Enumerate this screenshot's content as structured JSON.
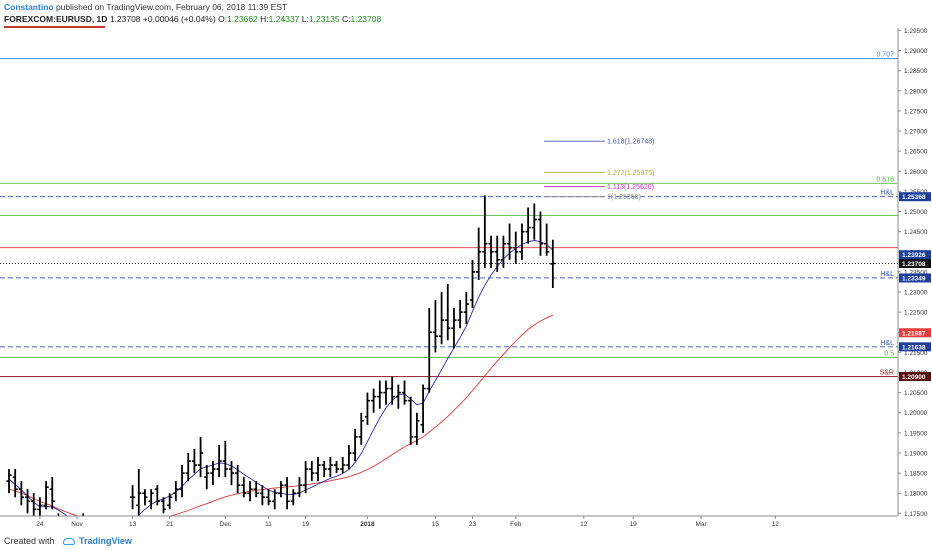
{
  "header": {
    "author": "Constantino",
    "published": "published on TradingView.com, February 06, 2018 11:39 EST",
    "symbol": "FOREXCOM:EURUSD, 1D",
    "last": "1.23708",
    "change": "+0.00046 (+0.04%)",
    "o_label": "O:",
    "o": "1.23662",
    "h_label": "H:",
    "h": "1.24337",
    "l_label": "L:",
    "l": "1.23135",
    "c_label": "C:",
    "c": "1.23708"
  },
  "footer": {
    "created": "Created with",
    "brand": "TradingView"
  },
  "colors": {
    "candle": "#000000",
    "ma_fast": "#2c2ca8",
    "ma_slow": "#e03a3a",
    "fib_blue": "#3b8fd9",
    "fib_green": "#5cbf4a",
    "support_red": "#e23c3c",
    "dashed_blue": "#3050b0",
    "brand": "#2a7fd4"
  },
  "chart_data": {
    "type": "ohlc",
    "ylim": [
      1.17434,
      1.2956
    ],
    "yticks": [
      "1.17500",
      "1.18000",
      "1.18500",
      "1.19000",
      "1.19500",
      "1.20000",
      "1.20500",
      "1.21000",
      "1.21500",
      "1.22000",
      "1.22500",
      "1.23000",
      "1.23500",
      "1.24000",
      "1.24500",
      "1.25000",
      "1.25500",
      "1.26000",
      "1.26500",
      "1.27000",
      "1.27500",
      "1.28000",
      "1.28500",
      "1.29000",
      "1.29500"
    ],
    "xticks": [
      {
        "label": "24",
        "i": 5
      },
      {
        "label": "Nov",
        "i": 11
      },
      {
        "label": "13",
        "i": 20
      },
      {
        "label": "21",
        "i": 26
      },
      {
        "label": "Dec",
        "i": 35
      },
      {
        "label": "11",
        "i": 42
      },
      {
        "label": "19",
        "i": 48
      },
      {
        "label": "2018",
        "i": 58
      },
      {
        "label": "15",
        "i": 69
      },
      {
        "label": "23",
        "i": 75
      },
      {
        "label": "Feb",
        "i": 82
      },
      {
        "label": "12",
        "i": 93
      },
      {
        "label": "19",
        "i": 101
      },
      {
        "label": "Mar",
        "i": 112
      },
      {
        "label": "12",
        "i": 124
      }
    ],
    "bars": [
      [
        1.183,
        1.186,
        1.18,
        1.1845
      ],
      [
        1.184,
        1.186,
        1.179,
        1.181
      ],
      [
        1.181,
        1.183,
        1.177,
        1.179
      ],
      [
        1.179,
        1.181,
        1.175,
        1.178
      ],
      [
        1.178,
        1.18,
        1.174,
        1.176
      ],
      [
        1.176,
        1.179,
        1.174,
        1.177
      ],
      [
        1.177,
        1.183,
        1.176,
        1.1815
      ],
      [
        1.181,
        1.184,
        1.176,
        1.178
      ],
      [
        1.172,
        1.175,
        1.17,
        1.173
      ],
      [
        1.172,
        1.174,
        1.169,
        1.171
      ],
      [
        1.171,
        1.173,
        1.169,
        1.172
      ],
      [
        1.172,
        1.174,
        1.17,
        1.173
      ],
      [
        1.173,
        1.175,
        1.171,
        1.172
      ],
      [
        1.172,
        1.174,
        1.17,
        1.171
      ],
      [
        1.17,
        1.172,
        1.169,
        1.171
      ],
      [
        1.171,
        1.173,
        1.169,
        1.17
      ],
      [
        1.17,
        1.172,
        1.168,
        1.17
      ],
      [
        1.17,
        1.172,
        1.169,
        1.171
      ],
      [
        1.171,
        1.173,
        1.17,
        1.172
      ],
      [
        1.172,
        1.174,
        1.17,
        1.173
      ],
      [
        1.179,
        1.182,
        1.176,
        1.179
      ],
      [
        1.177,
        1.186,
        1.174,
        1.18
      ],
      [
        1.18,
        1.181,
        1.177,
        1.179
      ],
      [
        1.178,
        1.181,
        1.176,
        1.18
      ],
      [
        1.181,
        1.182,
        1.177,
        1.178
      ],
      [
        1.178,
        1.179,
        1.175,
        1.176
      ],
      [
        1.177,
        1.18,
        1.176,
        1.179
      ],
      [
        1.18,
        1.183,
        1.178,
        1.181
      ],
      [
        1.181,
        1.187,
        1.179,
        1.185
      ],
      [
        1.185,
        1.19,
        1.183,
        1.188
      ],
      [
        1.188,
        1.191,
        1.185,
        1.187
      ],
      [
        1.187,
        1.194,
        1.184,
        1.19
      ],
      [
        1.184,
        1.187,
        1.181,
        1.185
      ],
      [
        1.185,
        1.188,
        1.182,
        1.186
      ],
      [
        1.186,
        1.192,
        1.184,
        1.188
      ],
      [
        1.188,
        1.193,
        1.184,
        1.186
      ],
      [
        1.186,
        1.188,
        1.182,
        1.185
      ],
      [
        1.185,
        1.187,
        1.18,
        1.182
      ],
      [
        1.182,
        1.184,
        1.179,
        1.18
      ],
      [
        1.18,
        1.183,
        1.178,
        1.181
      ],
      [
        1.181,
        1.183,
        1.179,
        1.18
      ],
      [
        1.18,
        1.182,
        1.177,
        1.179
      ],
      [
        1.179,
        1.181,
        1.177,
        1.178
      ],
      [
        1.178,
        1.181,
        1.176,
        1.18
      ],
      [
        1.18,
        1.183,
        1.179,
        1.182
      ],
      [
        1.182,
        1.184,
        1.176,
        1.178
      ],
      [
        1.178,
        1.181,
        1.177,
        1.18
      ],
      [
        1.18,
        1.184,
        1.179,
        1.182
      ],
      [
        1.182,
        1.188,
        1.18,
        1.186
      ],
      [
        1.186,
        1.188,
        1.183,
        1.185
      ],
      [
        1.185,
        1.189,
        1.183,
        1.187
      ],
      [
        1.187,
        1.188,
        1.184,
        1.186
      ],
      [
        1.186,
        1.189,
        1.184,
        1.187
      ],
      [
        1.187,
        1.188,
        1.185,
        1.186
      ],
      [
        1.186,
        1.189,
        1.185,
        1.187
      ],
      [
        1.187,
        1.192,
        1.186,
        1.19
      ],
      [
        1.19,
        1.196,
        1.188,
        1.194
      ],
      [
        1.194,
        1.2,
        1.192,
        1.198
      ],
      [
        1.199,
        1.205,
        1.197,
        1.203
      ],
      [
        1.203,
        1.206,
        1.2,
        1.204
      ],
      [
        1.204,
        1.208,
        1.201,
        1.205
      ],
      [
        1.205,
        1.208,
        1.202,
        1.206
      ],
      [
        1.206,
        1.209,
        1.202,
        1.204
      ],
      [
        1.204,
        1.207,
        1.201,
        1.205
      ],
      [
        1.205,
        1.208,
        1.202,
        1.203
      ],
      [
        1.203,
        1.204,
        1.192,
        1.194
      ],
      [
        1.194,
        1.2,
        1.192,
        1.198
      ],
      [
        1.197,
        1.207,
        1.195,
        1.206
      ],
      [
        1.206,
        1.226,
        1.205,
        1.22
      ],
      [
        1.22,
        1.228,
        1.215,
        1.219
      ],
      [
        1.219,
        1.23,
        1.217,
        1.223
      ],
      [
        1.223,
        1.232,
        1.218,
        1.221
      ],
      [
        1.221,
        1.226,
        1.216,
        1.223
      ],
      [
        1.223,
        1.228,
        1.221,
        1.225
      ],
      [
        1.225,
        1.23,
        1.222,
        1.227
      ],
      [
        1.228,
        1.238,
        1.226,
        1.235
      ],
      [
        1.235,
        1.246,
        1.233,
        1.24
      ],
      [
        1.24,
        1.254,
        1.236,
        1.242
      ],
      [
        1.242,
        1.244,
        1.236,
        1.24
      ],
      [
        1.24,
        1.244,
        1.235,
        1.238
      ],
      [
        1.238,
        1.244,
        1.236,
        1.242
      ],
      [
        1.242,
        1.247,
        1.238,
        1.241
      ],
      [
        1.241,
        1.245,
        1.237,
        1.24
      ],
      [
        1.24,
        1.247,
        1.238,
        1.245
      ],
      [
        1.245,
        1.251,
        1.242,
        1.246
      ],
      [
        1.246,
        1.252,
        1.243,
        1.248
      ],
      [
        1.248,
        1.25,
        1.239,
        1.242
      ],
      [
        1.242,
        1.247,
        1.239,
        1.24
      ],
      [
        1.237,
        1.243,
        1.231,
        1.2371
      ]
    ],
    "ma_fast": [
      1.1835,
      1.1822,
      1.1808,
      1.1793,
      1.1778,
      1.1766,
      1.1767,
      1.1766,
      1.1758,
      1.1748,
      1.1738,
      1.173,
      1.1724,
      1.1718,
      1.1712,
      1.1707,
      1.1704,
      1.1704,
      1.1708,
      1.1716,
      1.173,
      1.1746,
      1.176,
      1.1772,
      1.1781,
      1.1786,
      1.1793,
      1.1803,
      1.1817,
      1.1833,
      1.1847,
      1.1861,
      1.1866,
      1.187,
      1.1875,
      1.1874,
      1.1868,
      1.1858,
      1.1847,
      1.1837,
      1.1827,
      1.1817,
      1.1808,
      1.1802,
      1.18,
      1.1797,
      1.1797,
      1.18,
      1.1808,
      1.1815,
      1.1823,
      1.183,
      1.1837,
      1.1842,
      1.1849,
      1.1859,
      1.1876,
      1.1899,
      1.1928,
      1.1958,
      1.1987,
      1.2012,
      1.2031,
      1.2044,
      1.2047,
      1.2034,
      1.202,
      1.2024,
      1.2053,
      1.208,
      1.2107,
      1.2135,
      1.2161,
      1.2187,
      1.2215,
      1.2252,
      1.2287,
      1.2317,
      1.2342,
      1.2363,
      1.2382,
      1.2397,
      1.2408,
      1.2418,
      1.2425,
      1.2428,
      1.2425,
      1.2418,
      1.2404
    ],
    "ma_slow": [
      1.181,
      1.1806,
      1.18,
      1.1794,
      1.1787,
      1.178,
      1.1774,
      1.1768,
      1.1761,
      1.1755,
      1.1749,
      1.1744,
      1.1739,
      1.1735,
      1.1731,
      1.1728,
      1.1725,
      1.1723,
      1.1722,
      1.1722,
      1.1723,
      1.1725,
      1.1728,
      1.1731,
      1.1735,
      1.1739,
      1.1743,
      1.1747,
      1.1752,
      1.1757,
      1.1763,
      1.1769,
      1.1774,
      1.178,
      1.1786,
      1.1791,
      1.1795,
      1.1799,
      1.1802,
      1.1805,
      1.1807,
      1.1809,
      1.1811,
      1.1813,
      1.1814,
      1.1816,
      1.1817,
      1.1819,
      1.1821,
      1.1823,
      1.1826,
      1.1828,
      1.1831,
      1.1834,
      1.1837,
      1.1841,
      1.1846,
      1.1852,
      1.1859,
      1.1867,
      1.1876,
      1.1886,
      1.1896,
      1.1906,
      1.1915,
      1.1923,
      1.1931,
      1.194,
      1.1952,
      1.1964,
      1.1977,
      1.1991,
      1.2006,
      1.2021,
      1.2037,
      1.2055,
      1.2073,
      1.2092,
      1.211,
      1.2128,
      1.2145,
      1.2162,
      1.2178,
      1.2193,
      1.2207,
      1.2218,
      1.2228,
      1.2236,
      1.2242
    ],
    "hlines": [
      {
        "price": 1.288,
        "color": "#3b8fd9",
        "dash": false,
        "label": "0.707"
      },
      {
        "price": 1.257,
        "color": "#5cbf4a",
        "dash": false,
        "label": "0.618"
      },
      {
        "price": 1.25368,
        "color": "#3050b0",
        "dash": true,
        "label": "H&L"
      },
      {
        "price": 1.249,
        "color": "#5cbf4a",
        "dash": false,
        "label": ""
      },
      {
        "price": 1.241,
        "color": "#e23c3c",
        "dash": false,
        "label": ""
      },
      {
        "price": 1.23708,
        "color": "#333333",
        "dash": "dot",
        "label": ""
      },
      {
        "price": 1.23349,
        "color": "#3050b0",
        "dash": true,
        "label": "H&L"
      },
      {
        "price": 1.21638,
        "color": "#3050b0",
        "dash": true,
        "label": "H&L"
      },
      {
        "price": 1.2137,
        "color": "#5cbf4a",
        "dash": false,
        "label": "0.5"
      },
      {
        "price": 1.209,
        "color": "#8b1a1a",
        "dash": false,
        "label": "S&R"
      }
    ],
    "fib_ext": [
      {
        "label": "1.618(1.26748)",
        "price": 1.26748,
        "color": "#5050b0"
      },
      {
        "label": "1.272(1.25975)",
        "price": 1.25975,
        "color": "#a8b030"
      },
      {
        "label": "1.113(1.25620)",
        "price": 1.2562,
        "color": "#c030c0"
      },
      {
        "label": "1(1.25368)",
        "price": 1.25368,
        "color": "#888888"
      }
    ],
    "price_tags": [
      {
        "price": 1.25368,
        "text": "1.25368",
        "bg": "#1c3f9b",
        "fg": "#ffffff"
      },
      {
        "price": 1.23926,
        "text": "1.23926",
        "bg": "#1c3f9b",
        "fg": "#ffffff"
      },
      {
        "price": 1.23708,
        "text": "1.23708",
        "bg": "#111111",
        "fg": "#ffffff"
      },
      {
        "price": 1.23349,
        "text": "1.23349",
        "bg": "#1c3f9b",
        "fg": "#ffffff"
      },
      {
        "price": 1.21987,
        "text": "1.21987",
        "bg": "#e23c3c",
        "fg": "#ffffff"
      },
      {
        "price": 1.21638,
        "text": "1.21638",
        "bg": "#1c3f9b",
        "fg": "#ffffff"
      },
      {
        "price": 1.209,
        "text": "1.20900",
        "bg": "#5a1010",
        "fg": "#ffffff"
      }
    ]
  }
}
